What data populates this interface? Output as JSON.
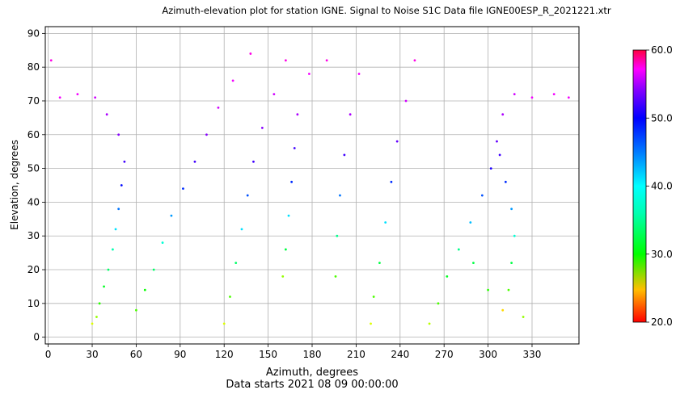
{
  "chart_data": {
    "type": "scatter",
    "title": "Azimuth-elevation plot for station IGNE.    Signal to Noise S1C    Data file IGNE00ESP_R_2021221.xtr",
    "xlabel": "Azimuth, degrees",
    "subtitle": "Data starts 2021 08 09 00:00:00",
    "ylabel": "Elevation, degrees",
    "xlim": [
      -2,
      362
    ],
    "ylim": [
      -2,
      92
    ],
    "x_ticks": [
      "0",
      "30",
      "60",
      "90",
      "120",
      "150",
      "180",
      "210",
      "240",
      "270",
      "300",
      "330"
    ],
    "y_ticks": [
      "0",
      "10",
      "20",
      "30",
      "40",
      "50",
      "60",
      "70",
      "80",
      "90"
    ],
    "grid": true,
    "colorbar": {
      "range": [
        20,
        60
      ],
      "ticks": [
        "20.0",
        "30.0",
        "40.0",
        "50.0",
        "60.0"
      ],
      "colormap": "hsv",
      "placement": "right"
    },
    "series": [
      {
        "description_note_removed": true,
        "color_encodes": "snr",
        "points": [
          {
            "az": 30,
            "el": 4,
            "snr": 28
          },
          {
            "az": 33,
            "el": 6,
            "snr": 30
          },
          {
            "az": 35,
            "el": 10,
            "snr": 33
          },
          {
            "az": 38,
            "el": 15,
            "snr": 35
          },
          {
            "az": 41,
            "el": 20,
            "snr": 37
          },
          {
            "az": 44,
            "el": 26,
            "snr": 39
          },
          {
            "az": 46,
            "el": 32,
            "snr": 42
          },
          {
            "az": 48,
            "el": 38,
            "snr": 45
          },
          {
            "az": 50,
            "el": 45,
            "snr": 48
          },
          {
            "az": 52,
            "el": 52,
            "snr": 50
          },
          {
            "az": 48,
            "el": 60,
            "snr": 52
          },
          {
            "az": 40,
            "el": 66,
            "snr": 53
          },
          {
            "az": 32,
            "el": 71,
            "snr": 54
          },
          {
            "az": 20,
            "el": 72,
            "snr": 55
          },
          {
            "az": 8,
            "el": 71,
            "snr": 55
          },
          {
            "az": 2,
            "el": 82,
            "snr": 56
          },
          {
            "az": 60,
            "el": 8,
            "snr": 32
          },
          {
            "az": 66,
            "el": 14,
            "snr": 34
          },
          {
            "az": 72,
            "el": 20,
            "snr": 37
          },
          {
            "az": 78,
            "el": 28,
            "snr": 40
          },
          {
            "az": 84,
            "el": 36,
            "snr": 44
          },
          {
            "az": 92,
            "el": 44,
            "snr": 47
          },
          {
            "az": 100,
            "el": 52,
            "snr": 50
          },
          {
            "az": 108,
            "el": 60,
            "snr": 52
          },
          {
            "az": 116,
            "el": 68,
            "snr": 54
          },
          {
            "az": 126,
            "el": 76,
            "snr": 55
          },
          {
            "az": 138,
            "el": 84,
            "snr": 56
          },
          {
            "az": 120,
            "el": 4,
            "snr": 28
          },
          {
            "az": 124,
            "el": 12,
            "snr": 32
          },
          {
            "az": 128,
            "el": 22,
            "snr": 37
          },
          {
            "az": 132,
            "el": 32,
            "snr": 42
          },
          {
            "az": 136,
            "el": 42,
            "snr": 46
          },
          {
            "az": 140,
            "el": 52,
            "snr": 50
          },
          {
            "az": 146,
            "el": 62,
            "snr": 52
          },
          {
            "az": 154,
            "el": 72,
            "snr": 54
          },
          {
            "az": 162,
            "el": 82,
            "snr": 56
          },
          {
            "az": 160,
            "el": 18,
            "snr": 30
          },
          {
            "az": 162,
            "el": 26,
            "snr": 36
          },
          {
            "az": 164,
            "el": 36,
            "snr": 42
          },
          {
            "az": 166,
            "el": 46,
            "snr": 47
          },
          {
            "az": 168,
            "el": 56,
            "snr": 50
          },
          {
            "az": 170,
            "el": 66,
            "snr": 53
          },
          {
            "az": 178,
            "el": 78,
            "snr": 55
          },
          {
            "az": 190,
            "el": 82,
            "snr": 56
          },
          {
            "az": 196,
            "el": 18,
            "snr": 32
          },
          {
            "az": 197,
            "el": 30,
            "snr": 38
          },
          {
            "az": 199,
            "el": 42,
            "snr": 45
          },
          {
            "az": 202,
            "el": 54,
            "snr": 50
          },
          {
            "az": 206,
            "el": 66,
            "snr": 53
          },
          {
            "az": 212,
            "el": 78,
            "snr": 55
          },
          {
            "az": 220,
            "el": 4,
            "snr": 28
          },
          {
            "az": 222,
            "el": 12,
            "snr": 32
          },
          {
            "az": 226,
            "el": 22,
            "snr": 36
          },
          {
            "az": 230,
            "el": 34,
            "snr": 42
          },
          {
            "az": 234,
            "el": 46,
            "snr": 47
          },
          {
            "az": 238,
            "el": 58,
            "snr": 51
          },
          {
            "az": 244,
            "el": 70,
            "snr": 54
          },
          {
            "az": 250,
            "el": 82,
            "snr": 56
          },
          {
            "az": 260,
            "el": 4,
            "snr": 29
          },
          {
            "az": 266,
            "el": 10,
            "snr": 32
          },
          {
            "az": 272,
            "el": 18,
            "snr": 35
          },
          {
            "az": 280,
            "el": 26,
            "snr": 38
          },
          {
            "az": 288,
            "el": 34,
            "snr": 43
          },
          {
            "az": 296,
            "el": 42,
            "snr": 46
          },
          {
            "az": 302,
            "el": 50,
            "snr": 49
          },
          {
            "az": 306,
            "el": 58,
            "snr": 51
          },
          {
            "az": 310,
            "el": 66,
            "snr": 53
          },
          {
            "az": 318,
            "el": 72,
            "snr": 54
          },
          {
            "az": 330,
            "el": 71,
            "snr": 55
          },
          {
            "az": 345,
            "el": 72,
            "snr": 55
          },
          {
            "az": 355,
            "el": 71,
            "snr": 55
          },
          {
            "az": 310,
            "el": 8,
            "snr": 26
          },
          {
            "az": 314,
            "el": 14,
            "snr": 32
          },
          {
            "az": 316,
            "el": 22,
            "snr": 36
          },
          {
            "az": 318,
            "el": 30,
            "snr": 40
          },
          {
            "az": 316,
            "el": 38,
            "snr": 44
          },
          {
            "az": 312,
            "el": 46,
            "snr": 47
          },
          {
            "az": 308,
            "el": 54,
            "snr": 50
          },
          {
            "az": 324,
            "el": 6,
            "snr": 30
          },
          {
            "az": 300,
            "el": 14,
            "snr": 33
          },
          {
            "az": 290,
            "el": 22,
            "snr": 36
          }
        ]
      }
    ]
  }
}
